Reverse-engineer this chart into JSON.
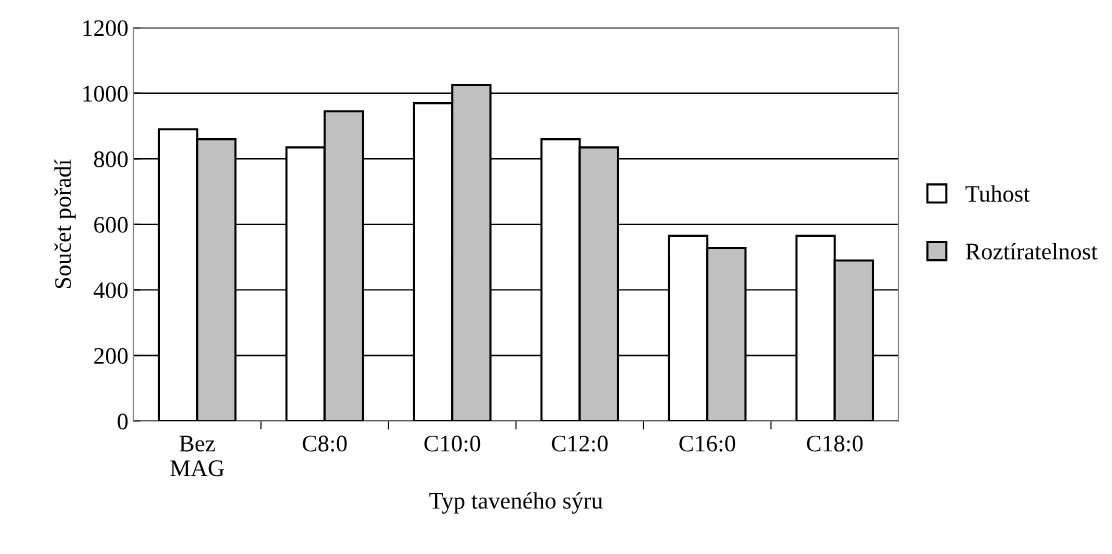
{
  "chart_data": {
    "type": "bar",
    "xlabel": "Typ taveného sýru",
    "ylabel": "Součet pořadí",
    "categories": [
      "Bez\nMAG",
      "C8:0",
      "C10:0",
      "C12:0",
      "C16:0",
      "C18:0"
    ],
    "series": [
      {
        "name": "Tuhost",
        "color": "#ffffff",
        "values": [
          890,
          835,
          970,
          860,
          565,
          565
        ]
      },
      {
        "name": "Roztíratelnost",
        "color": "#c0c0c0",
        "values": [
          860,
          945,
          1025,
          835,
          528,
          490
        ]
      }
    ],
    "ylim": [
      0,
      1200
    ],
    "yticks": [
      0,
      200,
      400,
      600,
      800,
      1000,
      1200
    ],
    "grid": "y",
    "legend": "right"
  }
}
